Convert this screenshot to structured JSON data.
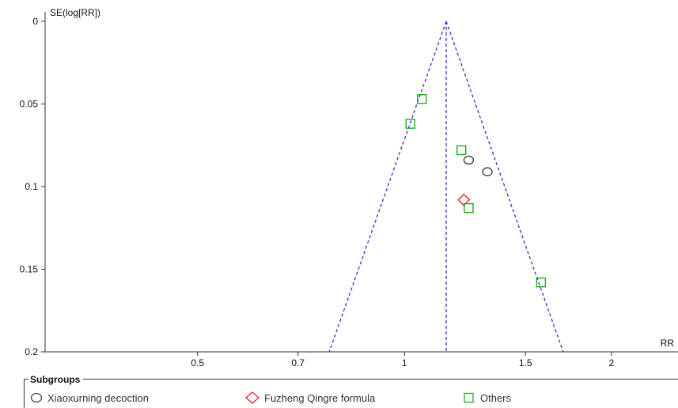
{
  "chart_data": {
    "type": "scatter",
    "title": "",
    "xlabel": "RR",
    "ylabel": "SE(log[RR])",
    "x_scale": "log",
    "y_reversed": true,
    "xlim": [
      0.3,
      2.5
    ],
    "ylim": [
      0,
      0.2
    ],
    "x_ticks": [
      "0.5",
      "0.7",
      "1",
      "1.5",
      "2"
    ],
    "y_ticks": [
      "0",
      "0.05",
      "0.1",
      "0.15",
      "0.2"
    ],
    "pooled_rr": 1.15,
    "funnel_color": "#3333cc",
    "legend": {
      "title": "Subgroups",
      "position": "bottom"
    },
    "series": [
      {
        "name": "Xiaoxurning decoction",
        "marker": "circle",
        "color": "#444444",
        "points": [
          {
            "x": 1.24,
            "y": 0.084
          },
          {
            "x": 1.32,
            "y": 0.091
          }
        ]
      },
      {
        "name": "Fuzheng Qingre formula",
        "marker": "diamond",
        "color": "#dd2222",
        "points": [
          {
            "x": 1.22,
            "y": 0.108
          }
        ]
      },
      {
        "name": "Others",
        "marker": "square",
        "color": "#22aa22",
        "points": [
          {
            "x": 1.06,
            "y": 0.047
          },
          {
            "x": 1.02,
            "y": 0.062
          },
          {
            "x": 1.21,
            "y": 0.078
          },
          {
            "x": 1.24,
            "y": 0.113
          },
          {
            "x": 1.58,
            "y": 0.158
          }
        ]
      }
    ]
  }
}
